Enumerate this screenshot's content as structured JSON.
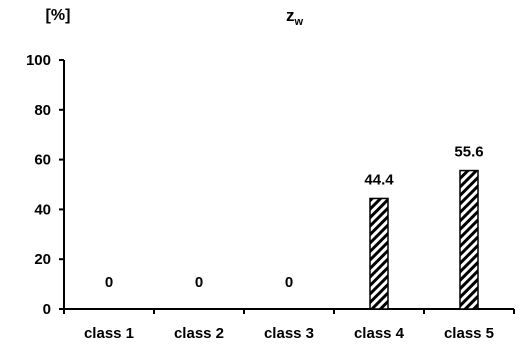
{
  "chart_data": {
    "type": "bar",
    "title": "z",
    "title_subscript": "w",
    "ylabel": "[%]",
    "xlabel": "",
    "categories": [
      "class 1",
      "class 2",
      "class 3",
      "class 4",
      "class 5"
    ],
    "values": [
      0,
      0,
      0,
      44.4,
      55.6
    ],
    "data_labels": [
      "0",
      "0",
      "0",
      "44.4",
      "55.6"
    ],
    "ylim": [
      0,
      100
    ],
    "yticks": [
      0,
      20,
      40,
      60,
      80,
      100
    ],
    "ytick_labels": [
      "0",
      "20",
      "40",
      "60",
      "80",
      "100"
    ],
    "grid": false,
    "bar_fill": "diagonal hatch",
    "colors": {
      "bar_stroke": "#000000",
      "hatch": "#000000",
      "background": "#ffffff"
    }
  }
}
